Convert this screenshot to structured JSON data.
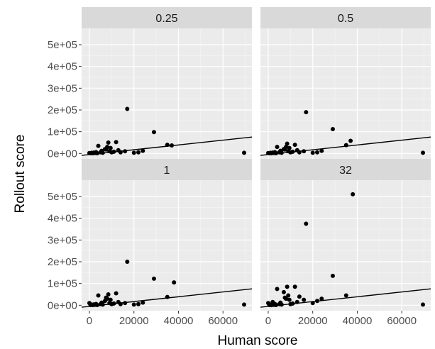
{
  "chart_data": {
    "type": "scatter",
    "facet_variable_values": [
      "0.25",
      "0.5",
      "1",
      "32"
    ],
    "xlabel": "Human score",
    "ylabel": "Rollout score",
    "xlim": [
      -3500,
      73000
    ],
    "ylim": [
      -25000,
      575000
    ],
    "x_ticks": [
      0,
      20000,
      40000,
      60000
    ],
    "x_tick_labels": [
      "0",
      "20000",
      "40000",
      "60000"
    ],
    "y_ticks": [
      0,
      100000,
      200000,
      300000,
      400000,
      500000
    ],
    "y_tick_labels": [
      "0e+00",
      "1e+05",
      "2e+05",
      "3e+05",
      "4e+05",
      "5e+05"
    ],
    "grid": true,
    "trend_line": {
      "intercept": -5000,
      "slope": 1.1
    },
    "panels": [
      {
        "facet": "0.25",
        "x": [
          0,
          500,
          1000,
          1500,
          2000,
          2500,
          3000,
          3500,
          4000,
          5000,
          5500,
          6000,
          7000,
          7500,
          8000,
          8500,
          9000,
          9500,
          10000,
          11000,
          12000,
          13000,
          14000,
          16000,
          17000,
          20000,
          22000,
          24000,
          29000,
          35000,
          37000,
          69500
        ],
        "y": [
          2000,
          1000,
          3000,
          500,
          4000,
          2000,
          6000,
          1000,
          35000,
          5000,
          12000,
          3000,
          20000,
          18000,
          30000,
          50000,
          10000,
          25000,
          5000,
          8000,
          52000,
          15000,
          5000,
          10000,
          205000,
          3000,
          5000,
          12000,
          98000,
          40000,
          37000,
          3000
        ]
      },
      {
        "facet": "0.5",
        "x": [
          0,
          500,
          1000,
          1500,
          2000,
          2500,
          3000,
          3500,
          4000,
          5000,
          5500,
          6000,
          7000,
          7500,
          8000,
          8500,
          9000,
          9500,
          10000,
          11000,
          12000,
          13000,
          14000,
          16000,
          17000,
          20000,
          22000,
          24000,
          29000,
          35000,
          37000,
          69500
        ],
        "y": [
          2000,
          1000,
          3000,
          500,
          4000,
          2000,
          6000,
          1000,
          30000,
          5000,
          12000,
          3000,
          20000,
          18000,
          30000,
          45000,
          10000,
          25000,
          5000,
          8000,
          40000,
          15000,
          5000,
          10000,
          190000,
          3000,
          5000,
          12000,
          112000,
          38000,
          58000,
          3000
        ]
      },
      {
        "facet": "1",
        "x": [
          0,
          500,
          1000,
          1500,
          2000,
          2500,
          3000,
          3500,
          4000,
          5000,
          5500,
          6000,
          7000,
          7500,
          8000,
          8500,
          9000,
          9500,
          10000,
          11000,
          12000,
          13000,
          14000,
          16000,
          17000,
          20000,
          22000,
          24000,
          29000,
          35000,
          38000,
          69500
        ],
        "y": [
          10000,
          1000,
          3000,
          500,
          4000,
          2000,
          6000,
          1000,
          45000,
          5000,
          12000,
          3000,
          20000,
          35000,
          30000,
          50000,
          10000,
          25000,
          5000,
          8000,
          55000,
          15000,
          5000,
          10000,
          200000,
          3000,
          5000,
          12000,
          122000,
          38000,
          105000,
          3000
        ]
      },
      {
        "facet": "32",
        "x": [
          0,
          500,
          1000,
          1500,
          2000,
          2500,
          3000,
          3500,
          4000,
          5000,
          5500,
          6000,
          7000,
          7500,
          8000,
          8500,
          9000,
          9500,
          10000,
          11000,
          12000,
          13000,
          14000,
          16000,
          17000,
          20000,
          22000,
          24000,
          29000,
          35000,
          38000,
          69500
        ],
        "y": [
          10000,
          1000,
          3000,
          500,
          15000,
          2000,
          6000,
          1000,
          75000,
          5000,
          12000,
          3000,
          60000,
          35000,
          30000,
          85000,
          45000,
          25000,
          5000,
          8000,
          85000,
          15000,
          40000,
          25000,
          375000,
          10000,
          20000,
          30000,
          135000,
          45000,
          510000,
          3000
        ]
      }
    ]
  }
}
